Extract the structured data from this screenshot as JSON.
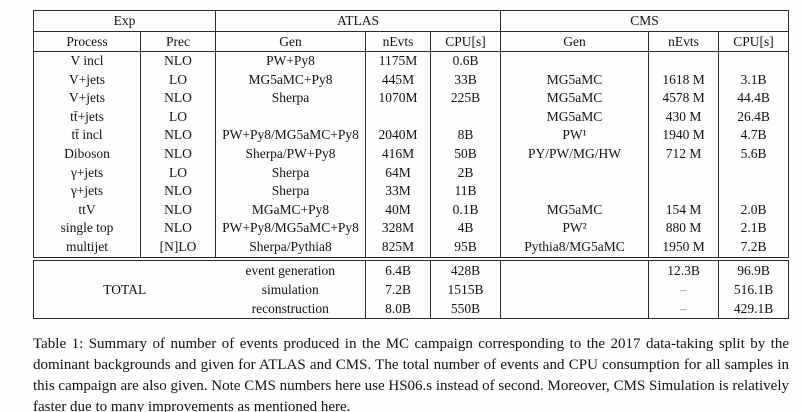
{
  "colors": {
    "background": "#fefefe",
    "text": "#111111",
    "border": "#2b2b2b",
    "dash": "#8c8c8c"
  },
  "table": {
    "header": {
      "exp": "Exp",
      "atlas": "ATLAS",
      "cms": "CMS",
      "cols": [
        "Process",
        "Prec",
        "Gen",
        "nEvts",
        "CPU[s]",
        "Gen",
        "nEvts",
        "CPU[s]"
      ]
    },
    "rows": [
      {
        "process": "V incl",
        "prec": "NLO",
        "atlas_gen": "PW+Py8",
        "atlas_nevts": "1175M",
        "atlas_cpu": "0.6B",
        "cms_gen": "",
        "cms_nevts": "",
        "cms_cpu": ""
      },
      {
        "process": "V+jets",
        "prec": "LO",
        "atlas_gen": "MG5aMC+Py8",
        "atlas_nevts": "445M",
        "atlas_cpu": "33B",
        "cms_gen": "MG5aMC",
        "cms_nevts": "1618 M",
        "cms_cpu": "3.1B"
      },
      {
        "process": "V+jets",
        "prec": "NLO",
        "atlas_gen": "Sherpa",
        "atlas_nevts": "1070M",
        "atlas_cpu": "225B",
        "cms_gen": "MG5aMC",
        "cms_nevts": "4578 M",
        "cms_cpu": "44.4B"
      },
      {
        "process": "tt̄+jets",
        "prec": "LO",
        "atlas_gen": "",
        "atlas_nevts": "",
        "atlas_cpu": "",
        "cms_gen": "MG5aMC",
        "cms_nevts": "430 M",
        "cms_cpu": "26.4B"
      },
      {
        "process": "tt̄ incl",
        "prec": "NLO",
        "atlas_gen": "PW+Py8/MG5aMC+Py8",
        "atlas_nevts": "2040M",
        "atlas_cpu": "8B",
        "cms_gen": "PW¹",
        "cms_nevts": "1940 M",
        "cms_cpu": "4.7B"
      },
      {
        "process": "Diboson",
        "prec": "NLO",
        "atlas_gen": "Sherpa/PW+Py8",
        "atlas_nevts": "416M",
        "atlas_cpu": "50B",
        "cms_gen": "PY/PW/MG/HW",
        "cms_nevts": "712 M",
        "cms_cpu": "5.6B"
      },
      {
        "process": "γ+jets",
        "prec": "LO",
        "atlas_gen": "Sherpa",
        "atlas_nevts": "64M",
        "atlas_cpu": "2B",
        "cms_gen": "",
        "cms_nevts": "",
        "cms_cpu": ""
      },
      {
        "process": "γ+jets",
        "prec": "NLO",
        "atlas_gen": "Sherpa",
        "atlas_nevts": "33M",
        "atlas_cpu": "11B",
        "cms_gen": "",
        "cms_nevts": "",
        "cms_cpu": ""
      },
      {
        "process": "ttV",
        "prec": "NLO",
        "atlas_gen": "MGaMC+Py8",
        "atlas_nevts": "40M",
        "atlas_cpu": "0.1B",
        "cms_gen": "MG5aMC",
        "cms_nevts": "154 M",
        "cms_cpu": "2.0B"
      },
      {
        "process": "single top",
        "prec": "NLO",
        "atlas_gen": "PW+Py8/MG5aMC+Py8",
        "atlas_nevts": "328M",
        "atlas_cpu": "4B",
        "cms_gen": "PW²",
        "cms_nevts": "880 M",
        "cms_cpu": "2.1B"
      },
      {
        "process": "multijet",
        "prec": "[N]LO",
        "atlas_gen": "Sherpa/Pythia8",
        "atlas_nevts": "825M",
        "atlas_cpu": "95B",
        "cms_gen": "Pythia8/MG5aMC",
        "cms_nevts": "1950 M",
        "cms_cpu": "7.2B"
      }
    ],
    "total": {
      "label": "TOTAL",
      "rows": [
        {
          "name": "event generation",
          "atlas_nevts": "6.4B",
          "atlas_cpu": "428B",
          "cms_gen": "",
          "cms_nevts": "12.3B",
          "cms_cpu": "96.9B"
        },
        {
          "name": "simulation",
          "atlas_nevts": "7.2B",
          "atlas_cpu": "1515B",
          "cms_gen": "",
          "cms_nevts": "–",
          "cms_cpu": "516.1B"
        },
        {
          "name": "reconstruction",
          "atlas_nevts": "8.0B",
          "atlas_cpu": "550B",
          "cms_gen": "",
          "cms_nevts": "–",
          "cms_cpu": "429.1B"
        }
      ]
    }
  },
  "caption": {
    "before_link": "Table 1: Summary of number of events produced in the MC campaign corresponding to the 2017 data-taking split by the dominant backgrounds and given for ATLAS and CMS. The total number of events and CPU consumption for all samples in this campaign are also given. Note CMS numbers here use HS06.s instead of second. Moreover, CMS Simulation is relatively faster due to many improvements as mentioned ",
    "link": "here",
    "after_link": "."
  }
}
